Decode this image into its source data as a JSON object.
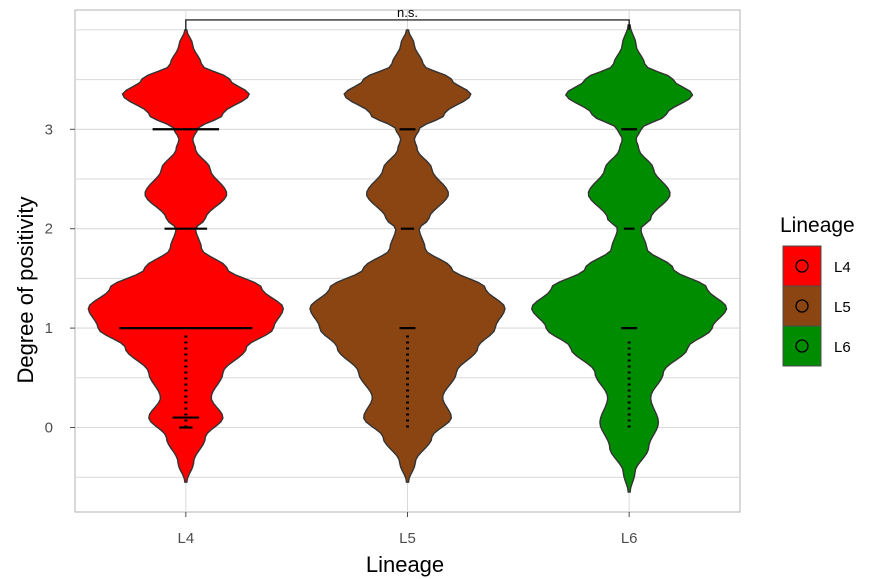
{
  "chart_data": {
    "type": "violin",
    "title": "",
    "xlabel": "Lineage",
    "ylabel": "Degree of positivity",
    "categories": [
      "L4",
      "L5",
      "L6"
    ],
    "ylim": [
      -0.85,
      4.2
    ],
    "y_ticks": [
      0,
      1,
      2,
      3
    ],
    "y_tick_labels": [
      "0",
      "1",
      "2",
      "3"
    ],
    "grid": true,
    "legend": {
      "title": "Lineage",
      "position": "right",
      "entries": [
        {
          "label": "L4",
          "color": "#ff0000"
        },
        {
          "label": "L5",
          "color": "#8b4513"
        },
        {
          "label": "L6",
          "color": "#008c00"
        }
      ]
    },
    "series": [
      {
        "name": "L4",
        "color": "#ff0000",
        "y_min": -0.55,
        "y_max": 4.0,
        "density": [
          [
            -0.55,
            0.01
          ],
          [
            -0.35,
            0.08
          ],
          [
            -0.1,
            0.2
          ],
          [
            0.1,
            0.38
          ],
          [
            0.3,
            0.26
          ],
          [
            0.55,
            0.38
          ],
          [
            0.8,
            0.62
          ],
          [
            1.0,
            0.9
          ],
          [
            1.2,
            1.0
          ],
          [
            1.4,
            0.78
          ],
          [
            1.6,
            0.42
          ],
          [
            1.8,
            0.16
          ],
          [
            2.0,
            0.1
          ],
          [
            2.1,
            0.2
          ],
          [
            2.35,
            0.42
          ],
          [
            2.6,
            0.25
          ],
          [
            2.8,
            0.1
          ],
          [
            2.9,
            0.07
          ],
          [
            3.0,
            0.12
          ],
          [
            3.15,
            0.38
          ],
          [
            3.35,
            0.65
          ],
          [
            3.5,
            0.45
          ],
          [
            3.65,
            0.16
          ],
          [
            3.85,
            0.07
          ],
          [
            4.0,
            0.01
          ]
        ],
        "dot_ranges": [
          [
            0.0,
            0.95
          ]
        ],
        "median_lines": [
          {
            "y": 3.0,
            "width": 0.5
          },
          {
            "y": 2.0,
            "width": 0.32
          },
          {
            "y": 1.0,
            "width": 1.0
          },
          {
            "y": 0.1,
            "width": 0.2
          },
          {
            "y": 0.0,
            "width": 0.1
          }
        ]
      },
      {
        "name": "L5",
        "color": "#8b4513",
        "y_min": -0.55,
        "y_max": 4.0,
        "density": [
          [
            -0.55,
            0.01
          ],
          [
            -0.35,
            0.08
          ],
          [
            -0.1,
            0.25
          ],
          [
            0.1,
            0.45
          ],
          [
            0.3,
            0.36
          ],
          [
            0.55,
            0.5
          ],
          [
            0.8,
            0.72
          ],
          [
            1.0,
            0.9
          ],
          [
            1.2,
            1.0
          ],
          [
            1.4,
            0.8
          ],
          [
            1.6,
            0.45
          ],
          [
            1.8,
            0.18
          ],
          [
            2.0,
            0.12
          ],
          [
            2.1,
            0.22
          ],
          [
            2.35,
            0.42
          ],
          [
            2.6,
            0.25
          ],
          [
            2.8,
            0.1
          ],
          [
            2.9,
            0.07
          ],
          [
            3.0,
            0.12
          ],
          [
            3.15,
            0.38
          ],
          [
            3.35,
            0.65
          ],
          [
            3.5,
            0.45
          ],
          [
            3.65,
            0.16
          ],
          [
            3.85,
            0.07
          ],
          [
            4.0,
            0.01
          ]
        ],
        "dot_ranges": [
          [
            0.0,
            0.95
          ]
        ],
        "median_lines": [
          {
            "y": 3.0,
            "width": 0.12
          },
          {
            "y": 2.0,
            "width": 0.1
          },
          {
            "y": 1.0,
            "width": 0.12
          }
        ]
      },
      {
        "name": "L6",
        "color": "#008c00",
        "y_min": -0.65,
        "y_max": 4.05,
        "density": [
          [
            -0.65,
            0.01
          ],
          [
            -0.45,
            0.06
          ],
          [
            -0.2,
            0.2
          ],
          [
            0.05,
            0.3
          ],
          [
            0.3,
            0.22
          ],
          [
            0.55,
            0.35
          ],
          [
            0.8,
            0.6
          ],
          [
            1.0,
            0.85
          ],
          [
            1.2,
            1.0
          ],
          [
            1.4,
            0.8
          ],
          [
            1.6,
            0.45
          ],
          [
            1.8,
            0.18
          ],
          [
            2.0,
            0.12
          ],
          [
            2.1,
            0.22
          ],
          [
            2.35,
            0.42
          ],
          [
            2.6,
            0.25
          ],
          [
            2.8,
            0.1
          ],
          [
            2.9,
            0.07
          ],
          [
            3.0,
            0.12
          ],
          [
            3.15,
            0.38
          ],
          [
            3.35,
            0.65
          ],
          [
            3.5,
            0.45
          ],
          [
            3.65,
            0.16
          ],
          [
            3.85,
            0.07
          ],
          [
            4.05,
            0.01
          ]
        ],
        "dot_ranges": [
          [
            0.0,
            0.9
          ]
        ],
        "median_lines": [
          {
            "y": 3.0,
            "width": 0.12
          },
          {
            "y": 2.0,
            "width": 0.08
          },
          {
            "y": 1.0,
            "width": 0.12
          }
        ]
      }
    ],
    "annotations": [
      {
        "type": "significance-bracket",
        "from": "L4",
        "to": "L6",
        "y": 4.1,
        "label": "n.s."
      }
    ]
  }
}
